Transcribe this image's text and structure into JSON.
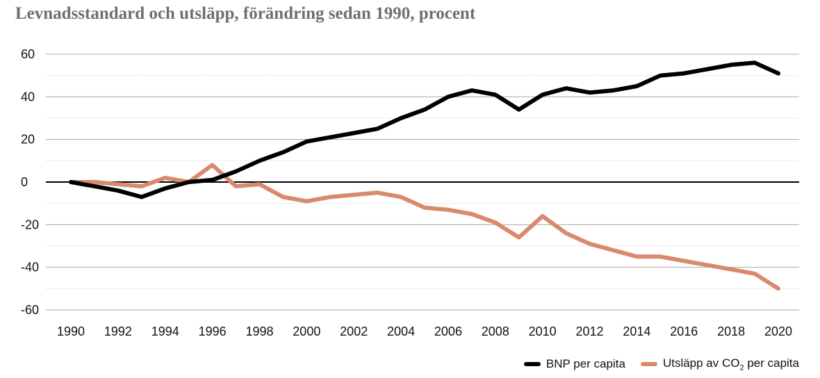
{
  "title": "Levnadsstandard och utsläpp, förändring sedan 1990, procent",
  "colors": {
    "bnp": "#000000",
    "co2": "#d98a6c",
    "grid_major": "#a8a8a8",
    "grid_minor": "#d6d6d6",
    "zero_line": "#000000"
  },
  "chart_data": {
    "type": "line",
    "title": "Levnadsstandard och utsläpp, förändring sedan 1990, procent",
    "xlabel": "",
    "ylabel": "",
    "x": [
      1990,
      1991,
      1992,
      1993,
      1994,
      1995,
      1996,
      1997,
      1998,
      1999,
      2000,
      2001,
      2002,
      2003,
      2004,
      2005,
      2006,
      2007,
      2008,
      2009,
      2010,
      2011,
      2012,
      2013,
      2014,
      2015,
      2016,
      2017,
      2018,
      2019,
      2020
    ],
    "xlim": [
      1990,
      2020
    ],
    "x_ticks": [
      "1990",
      "1992",
      "1994",
      "1996",
      "1998",
      "2000",
      "2002",
      "2004",
      "2006",
      "2008",
      "2010",
      "2012",
      "2014",
      "2016",
      "2018",
      "2020"
    ],
    "ylim": [
      -60,
      60
    ],
    "y_ticks": [
      "60",
      "40",
      "20",
      "0",
      "-20",
      "-40",
      "-60"
    ],
    "grid": true,
    "legend_position": "bottom-right",
    "series": [
      {
        "name": "BNP per capita",
        "values": [
          0,
          -2,
          -4,
          -7,
          -3,
          0,
          1,
          5,
          10,
          14,
          19,
          21,
          23,
          25,
          30,
          34,
          40,
          43,
          41,
          34,
          41,
          44,
          42,
          43,
          45,
          50,
          51,
          53,
          55,
          56,
          51
        ]
      },
      {
        "name": "Utsläpp av CO₂ per capita",
        "values": [
          0,
          0,
          -1,
          -2,
          2,
          0,
          8,
          -2,
          -1,
          -7,
          -9,
          -7,
          -6,
          -5,
          -7,
          -12,
          -13,
          -15,
          -19,
          -26,
          -16,
          -24,
          -29,
          -32,
          -35,
          -35,
          -37,
          -39,
          -41,
          -43,
          -50
        ]
      }
    ]
  },
  "legend": {
    "items": [
      {
        "label_prefix": "BNP per capita",
        "label_sub": "",
        "label_suffix": ""
      },
      {
        "label_prefix": "Utsläpp av CO",
        "label_sub": "2",
        "label_suffix": " per capita"
      }
    ]
  }
}
